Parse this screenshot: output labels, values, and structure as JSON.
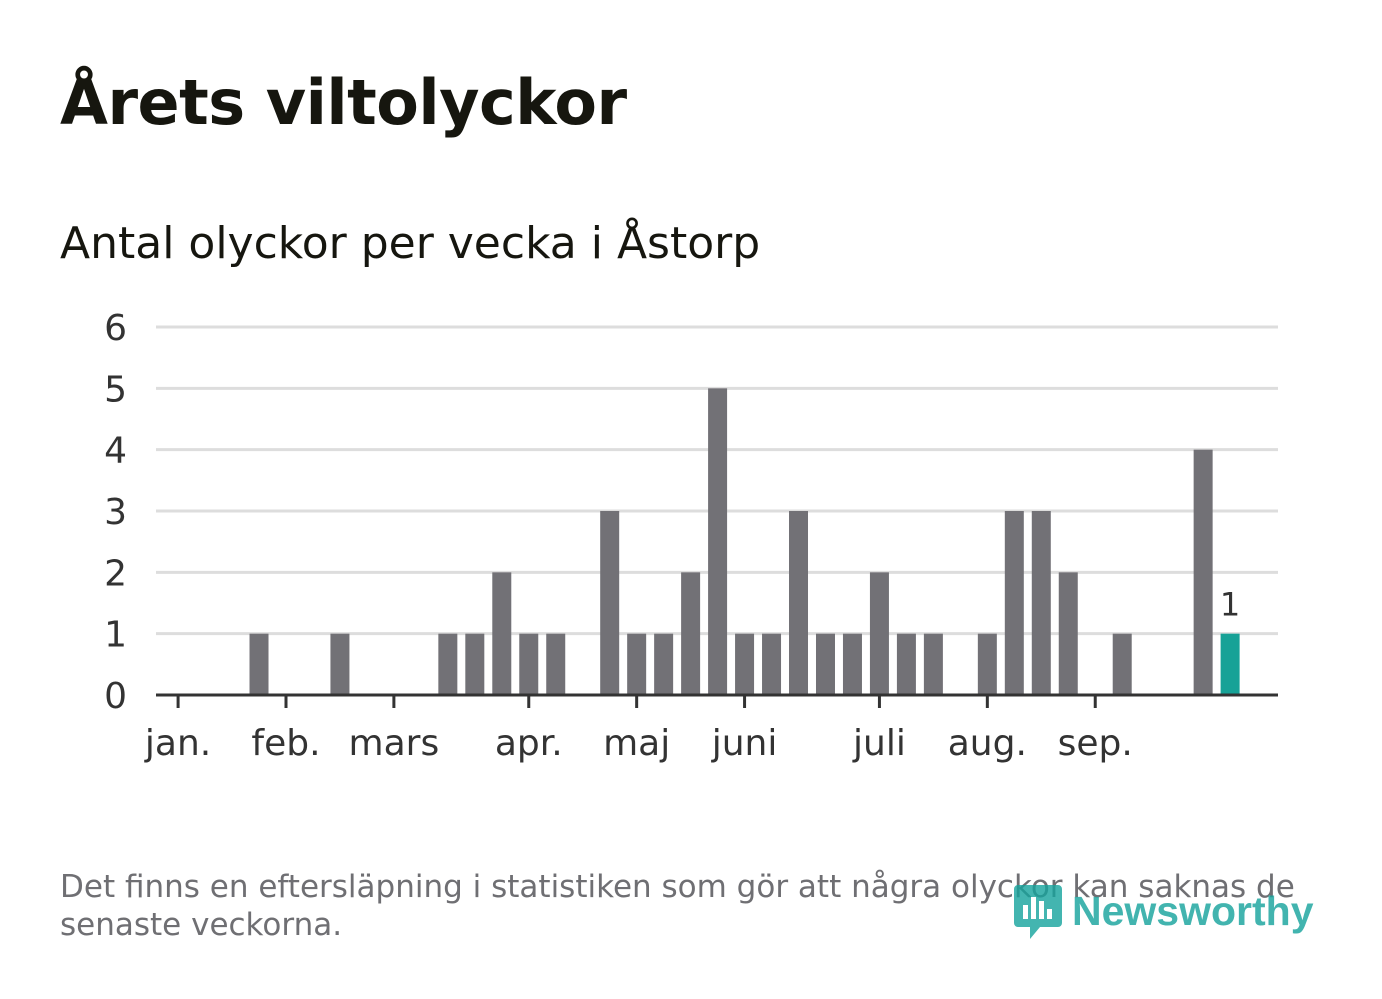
{
  "title": "Årets viltolyckor",
  "subtitle": "Antal olyckor per vecka i Åstorp",
  "footnote": "Det finns en eftersläpning i statistiken som gör att några olyckor kan saknas de senaste veckorna.",
  "logo": {
    "text": "Newsworthy",
    "icon": "newsworthy-logo-icon"
  },
  "colors": {
    "bar": "#727176",
    "highlight": "#17a297",
    "grid": "#dddddd",
    "axis": "#333333",
    "text": "#333333",
    "brand": "#16a39c"
  },
  "chart_data": {
    "type": "bar",
    "title": "Antal olyckor per vecka i Åstorp",
    "xlabel": "",
    "ylabel": "",
    "ylim": [
      0,
      6
    ],
    "yticks": [
      0,
      1,
      2,
      3,
      4,
      5,
      6
    ],
    "grid": true,
    "weeks": [
      1,
      2,
      3,
      4,
      5,
      6,
      7,
      8,
      9,
      10,
      11,
      12,
      13,
      14,
      15,
      16,
      17,
      18,
      19,
      20,
      21,
      22,
      23,
      24,
      25,
      26,
      27,
      28,
      29,
      30,
      31,
      32,
      33,
      34,
      35,
      36,
      37,
      38,
      39,
      40,
      41
    ],
    "values": [
      0,
      0,
      0,
      1,
      0,
      0,
      1,
      0,
      0,
      0,
      1,
      1,
      2,
      1,
      1,
      0,
      3,
      1,
      1,
      2,
      5,
      1,
      1,
      3,
      1,
      1,
      2,
      1,
      1,
      0,
      1,
      3,
      3,
      2,
      0,
      1,
      0,
      0,
      4,
      1,
      0
    ],
    "highlight_week": 40,
    "highlight_label": "1",
    "month_ticks": [
      {
        "label": "jan.",
        "position": 0.5
      },
      {
        "label": "feb.",
        "position": 4.5
      },
      {
        "label": "mars",
        "position": 8.5
      },
      {
        "label": "apr.",
        "position": 13.5
      },
      {
        "label": "maj",
        "position": 17.5
      },
      {
        "label": "juni",
        "position": 21.5
      },
      {
        "label": "juli",
        "position": 26.5
      },
      {
        "label": "aug.",
        "position": 30.5
      },
      {
        "label": "sep.",
        "position": 34.5
      }
    ]
  }
}
